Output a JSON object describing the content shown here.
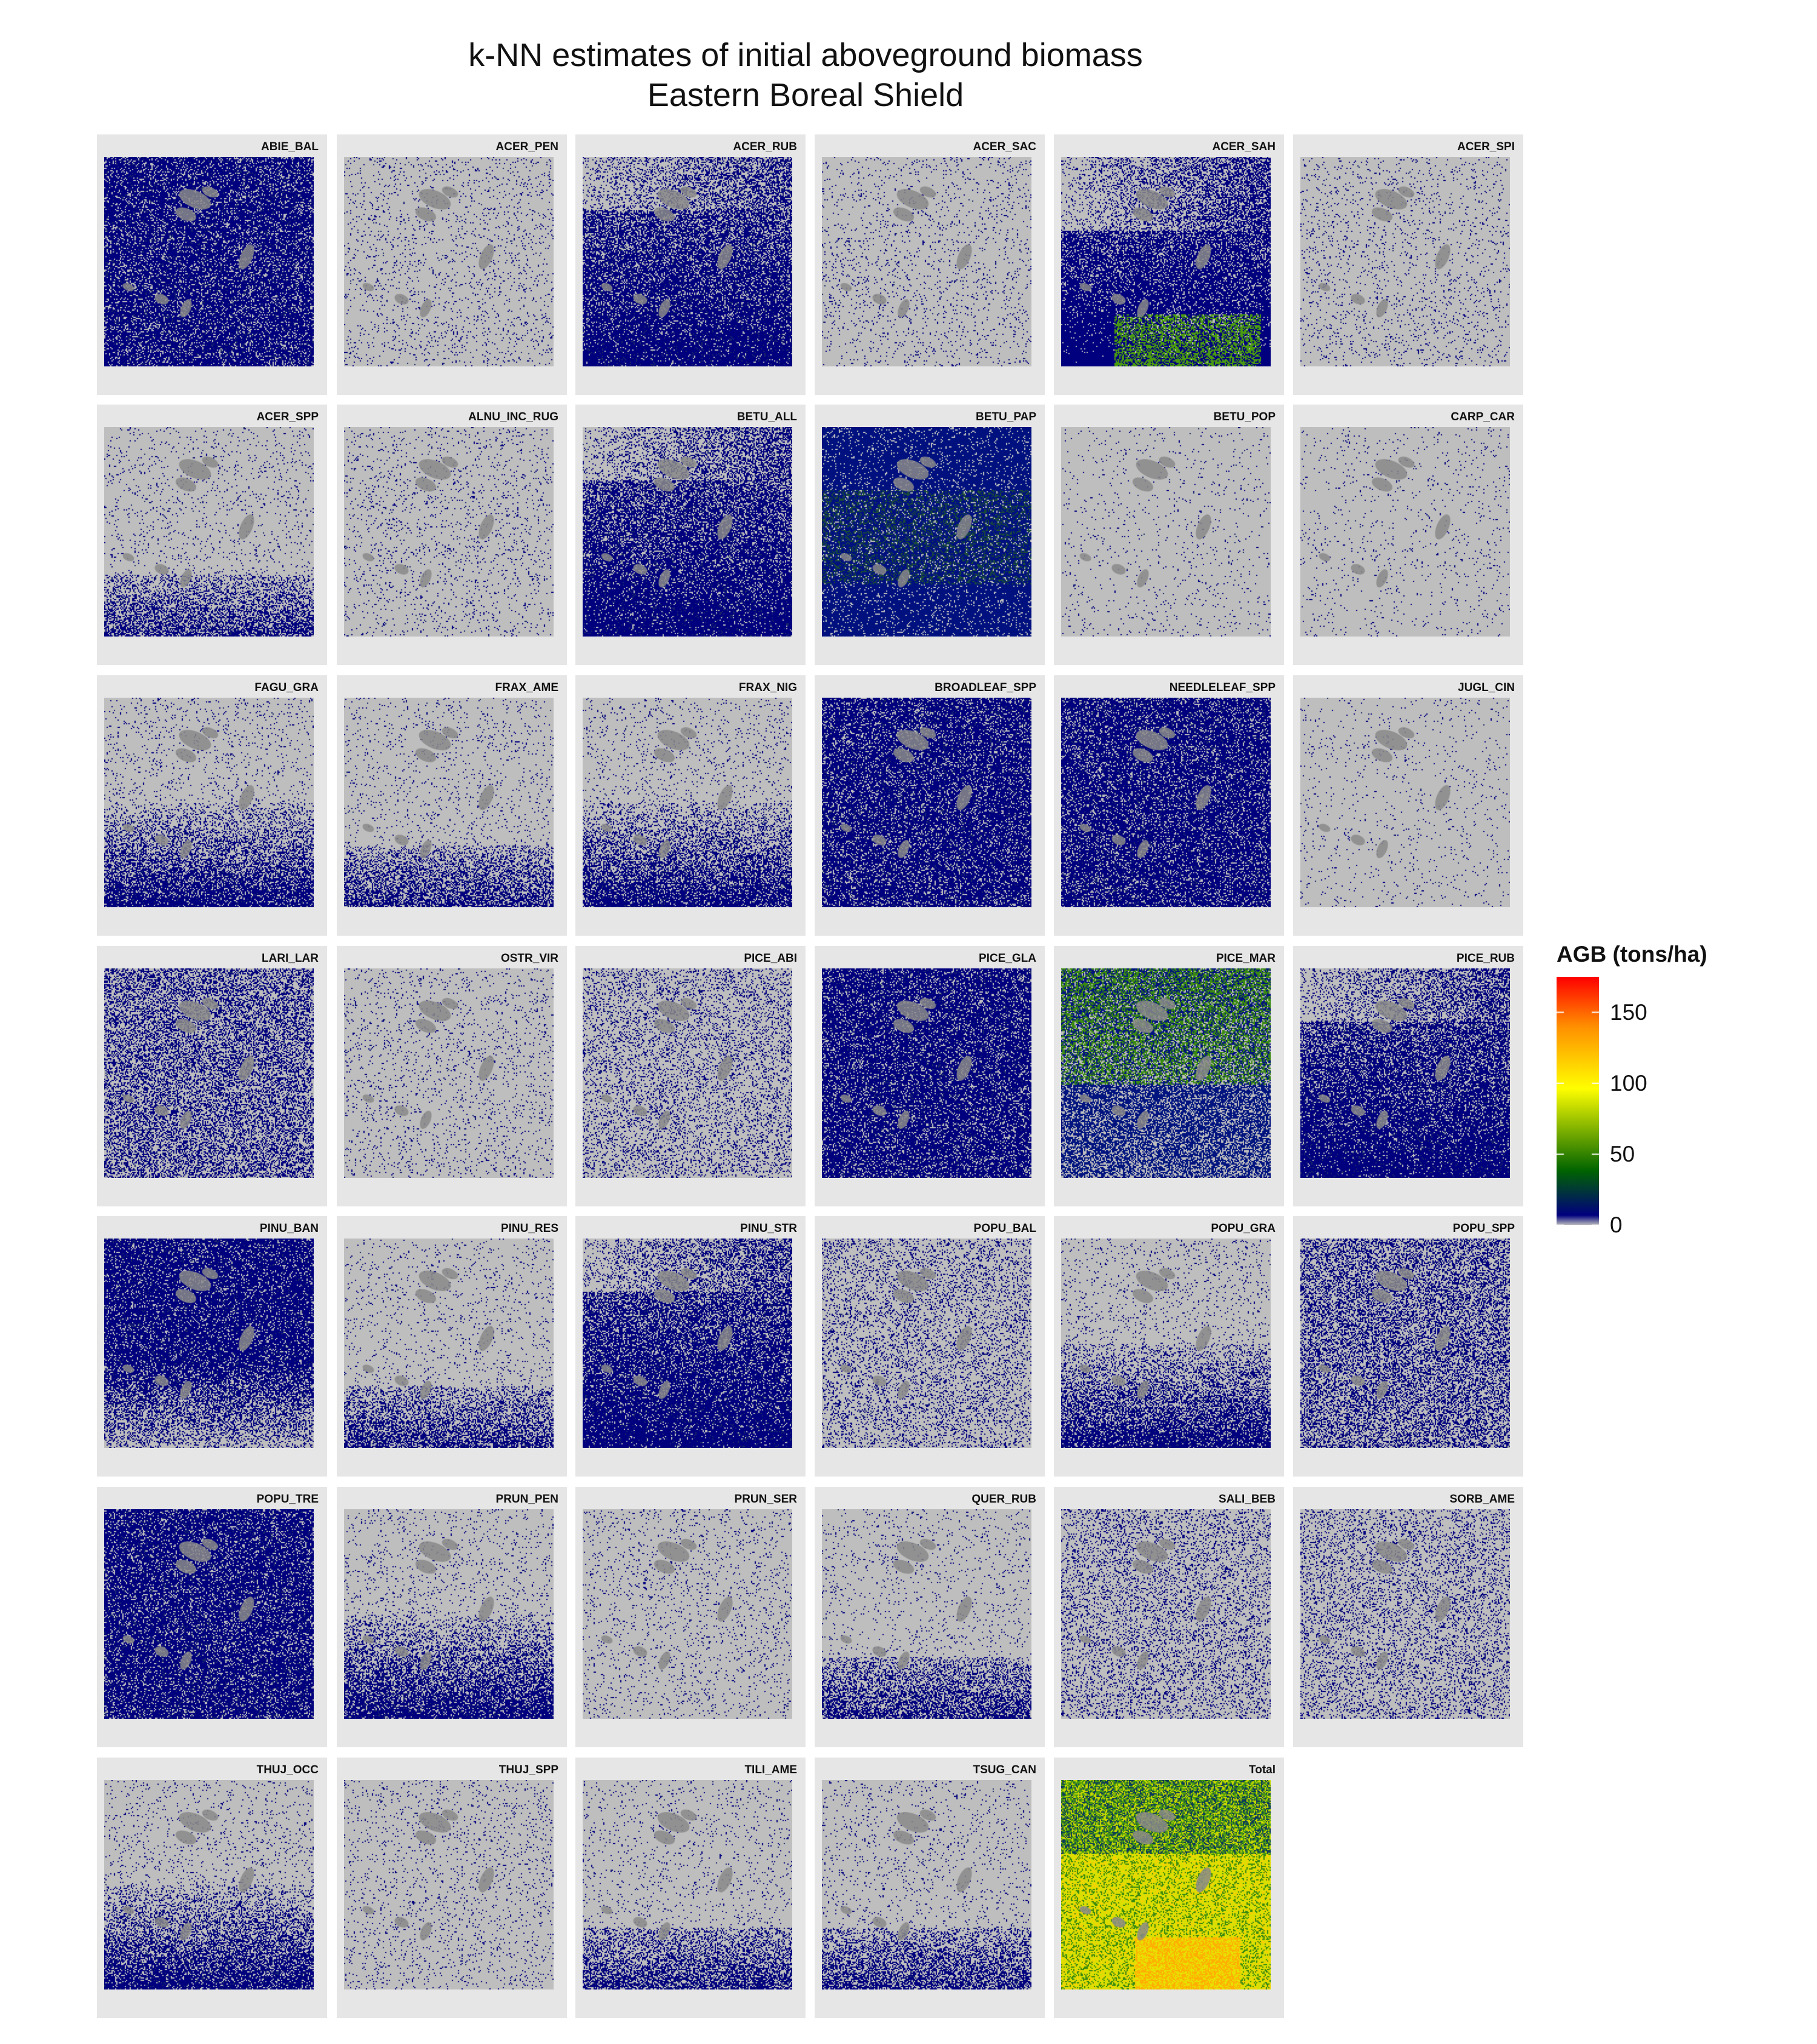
{
  "title_line1": "k-NN estimates of initial aboveground biomass",
  "title_line2": "Eastern Boreal Shield",
  "legend": {
    "title": "AGB (tons/ha)",
    "ticks": [
      {
        "value": 150,
        "label": "150"
      },
      {
        "value": 100,
        "label": "100"
      },
      {
        "value": 50,
        "label": "50"
      },
      {
        "value": 0,
        "label": "0"
      }
    ],
    "range": [
      0,
      175
    ],
    "colors": {
      "zero": "#bebebe",
      "low": "#00007f",
      "mid": "#006400",
      "yellow": "#ffff00",
      "orange": "#ff9000",
      "high": "#ff0000"
    }
  },
  "colors": {
    "background_map": "#bebebe",
    "panel": "#e6e6e6",
    "landmark": "#8a8a8a"
  },
  "panels": [
    {
      "label": "ABIE_BAL",
      "coverage": "high"
    },
    {
      "label": "ACER_PEN",
      "coverage": "sparse"
    },
    {
      "label": "ACER_RUB",
      "coverage": "south-dense"
    },
    {
      "label": "ACER_SAC",
      "coverage": "sparse"
    },
    {
      "label": "ACER_SAH",
      "coverage": "south-dense-green"
    },
    {
      "label": "ACER_SPI",
      "coverage": "sparse"
    },
    {
      "label": "ACER_SPP",
      "coverage": "south-sparse"
    },
    {
      "label": "ALNU_INC_RUG",
      "coverage": "sparse"
    },
    {
      "label": "BETU_ALL",
      "coverage": "south-dense"
    },
    {
      "label": "BETU_PAP",
      "coverage": "high-green"
    },
    {
      "label": "BETU_POP",
      "coverage": "very-sparse"
    },
    {
      "label": "CARP_CAR",
      "coverage": "very-sparse"
    },
    {
      "label": "FAGU_GRA",
      "coverage": "south-medium"
    },
    {
      "label": "FRAX_AME",
      "coverage": "south-sparse"
    },
    {
      "label": "FRAX_NIG",
      "coverage": "south-medium"
    },
    {
      "label": "BROADLEAF_SPP",
      "coverage": "high"
    },
    {
      "label": "NEEDLELEAF_SPP",
      "coverage": "high"
    },
    {
      "label": "JUGL_CIN",
      "coverage": "very-sparse"
    },
    {
      "label": "LARI_LAR",
      "coverage": "medium"
    },
    {
      "label": "OSTR_VIR",
      "coverage": "sparse"
    },
    {
      "label": "PICE_ABI",
      "coverage": "low"
    },
    {
      "label": "PICE_GLA",
      "coverage": "high"
    },
    {
      "label": "PICE_MAR",
      "coverage": "north-green"
    },
    {
      "label": "PICE_RUB",
      "coverage": "south-dense"
    },
    {
      "label": "PINU_BAN",
      "coverage": "north-dense"
    },
    {
      "label": "PINU_RES",
      "coverage": "south-sparse"
    },
    {
      "label": "PINU_STR",
      "coverage": "south-dense"
    },
    {
      "label": "POPU_BAL",
      "coverage": "low"
    },
    {
      "label": "POPU_GRA",
      "coverage": "south-medium"
    },
    {
      "label": "POPU_SPP",
      "coverage": "medium"
    },
    {
      "label": "POPU_TRE",
      "coverage": "high"
    },
    {
      "label": "PRUN_PEN",
      "coverage": "south-medium"
    },
    {
      "label": "PRUN_SER",
      "coverage": "sparse"
    },
    {
      "label": "QUER_RUB",
      "coverage": "south-sparse"
    },
    {
      "label": "SALI_BEB",
      "coverage": "low"
    },
    {
      "label": "SORB_AME",
      "coverage": "low"
    },
    {
      "label": "THUJ_OCC",
      "coverage": "south-medium"
    },
    {
      "label": "THUJ_SPP",
      "coverage": "sparse"
    },
    {
      "label": "TILI_AME",
      "coverage": "south-sparse"
    },
    {
      "label": "TSUG_CAN",
      "coverage": "south-sparse"
    },
    {
      "label": "Total",
      "coverage": "total"
    }
  ]
}
